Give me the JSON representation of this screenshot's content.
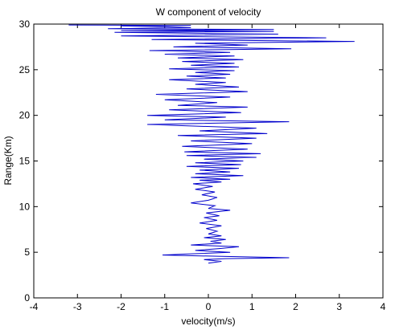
{
  "chart_data": {
    "type": "line",
    "title": "W component of velocity",
    "xlabel": "velocity(m/s)",
    "ylabel": "Range(Km)",
    "xlim": [
      -4,
      4
    ],
    "ylim": [
      0,
      30
    ],
    "xticks": [
      "-4",
      "-3",
      "-2",
      "-1",
      "0",
      "1",
      "2",
      "3",
      "4"
    ],
    "yticks": [
      "0",
      "5",
      "10",
      "15",
      "20",
      "25",
      "30"
    ],
    "grid": false,
    "line_color": "#0000cc",
    "series": [
      {
        "x": [
          0.0,
          0.3,
          -0.1,
          0.4,
          1.85,
          0.3,
          -1.05,
          -0.5,
          0.5,
          -0.3,
          0.25,
          0.7,
          -0.4,
          0.3,
          0.05,
          0.4,
          -0.1,
          0.3,
          0.0,
          0.2,
          -0.05,
          0.3,
          -0.2,
          0.2,
          -0.1,
          0.25,
          -0.05,
          0.5,
          0.0,
          0.15,
          -0.4,
          0.0,
          0.2,
          -0.15,
          0.15,
          -0.3,
          0.1,
          -0.35,
          0.3,
          -0.2,
          0.5,
          -0.4,
          0.8,
          -0.3,
          0.5,
          -0.2,
          0.7,
          -0.5,
          0.75,
          -0.3,
          0.8,
          -0.1,
          1.1,
          -0.5,
          1.2,
          -0.55,
          0.9,
          -0.6,
          1.0,
          -0.4,
          1.1,
          -0.7,
          1.35,
          -0.2,
          1.1,
          -1.4,
          1.85,
          -1.0,
          0.4,
          -1.4,
          0.75,
          -0.9,
          0.9,
          -0.7,
          0.2,
          -1.0,
          0.5,
          -1.2,
          0.9,
          -0.5,
          0.7,
          -0.3,
          0.4,
          -0.9,
          0.4,
          -0.5,
          0.5,
          -0.3,
          0.6,
          -0.9,
          0.7,
          -0.4,
          0.6,
          -0.6,
          0.8,
          -0.7,
          0.6,
          -1.0,
          0.5,
          -1.35,
          1.9,
          -0.8,
          0.9,
          -0.3,
          3.35,
          -1.3,
          2.7,
          -2.0,
          1.6,
          -2.15,
          1.5,
          -2.0,
          1.5,
          -2.3,
          -0.4,
          -1.0,
          -2.0,
          -0.4,
          -3.2
        ],
        "y": [
          3.8,
          4.0,
          4.2,
          4.3,
          4.4,
          4.55,
          4.7,
          4.8,
          5.0,
          5.2,
          5.4,
          5.6,
          5.8,
          6.0,
          6.2,
          6.4,
          6.6,
          6.8,
          7.0,
          7.3,
          7.6,
          7.9,
          8.2,
          8.5,
          8.8,
          9.0,
          9.3,
          9.6,
          9.8,
          10.1,
          10.4,
          10.7,
          11.0,
          11.3,
          11.6,
          11.9,
          12.2,
          12.5,
          12.7,
          12.9,
          13.0,
          13.2,
          13.4,
          13.6,
          13.8,
          14.0,
          14.2,
          14.4,
          14.6,
          14.8,
          15.0,
          15.2,
          15.4,
          15.6,
          15.8,
          16.0,
          16.3,
          16.6,
          16.9,
          17.2,
          17.5,
          17.8,
          18.0,
          18.3,
          18.6,
          19.0,
          19.3,
          19.5,
          19.8,
          20.0,
          20.3,
          20.6,
          20.9,
          21.1,
          21.4,
          21.7,
          22.0,
          22.3,
          22.6,
          22.9,
          23.1,
          23.4,
          23.6,
          23.9,
          24.1,
          24.3,
          24.5,
          24.7,
          24.9,
          25.1,
          25.3,
          25.5,
          25.7,
          25.9,
          26.1,
          26.3,
          26.5,
          26.7,
          26.9,
          27.1,
          27.3,
          27.5,
          27.7,
          27.9,
          28.1,
          28.3,
          28.5,
          28.7,
          28.9,
          29.1,
          29.2,
          29.3,
          29.4,
          29.5,
          29.6,
          29.7,
          29.8,
          29.85,
          29.9
        ]
      }
    ]
  }
}
